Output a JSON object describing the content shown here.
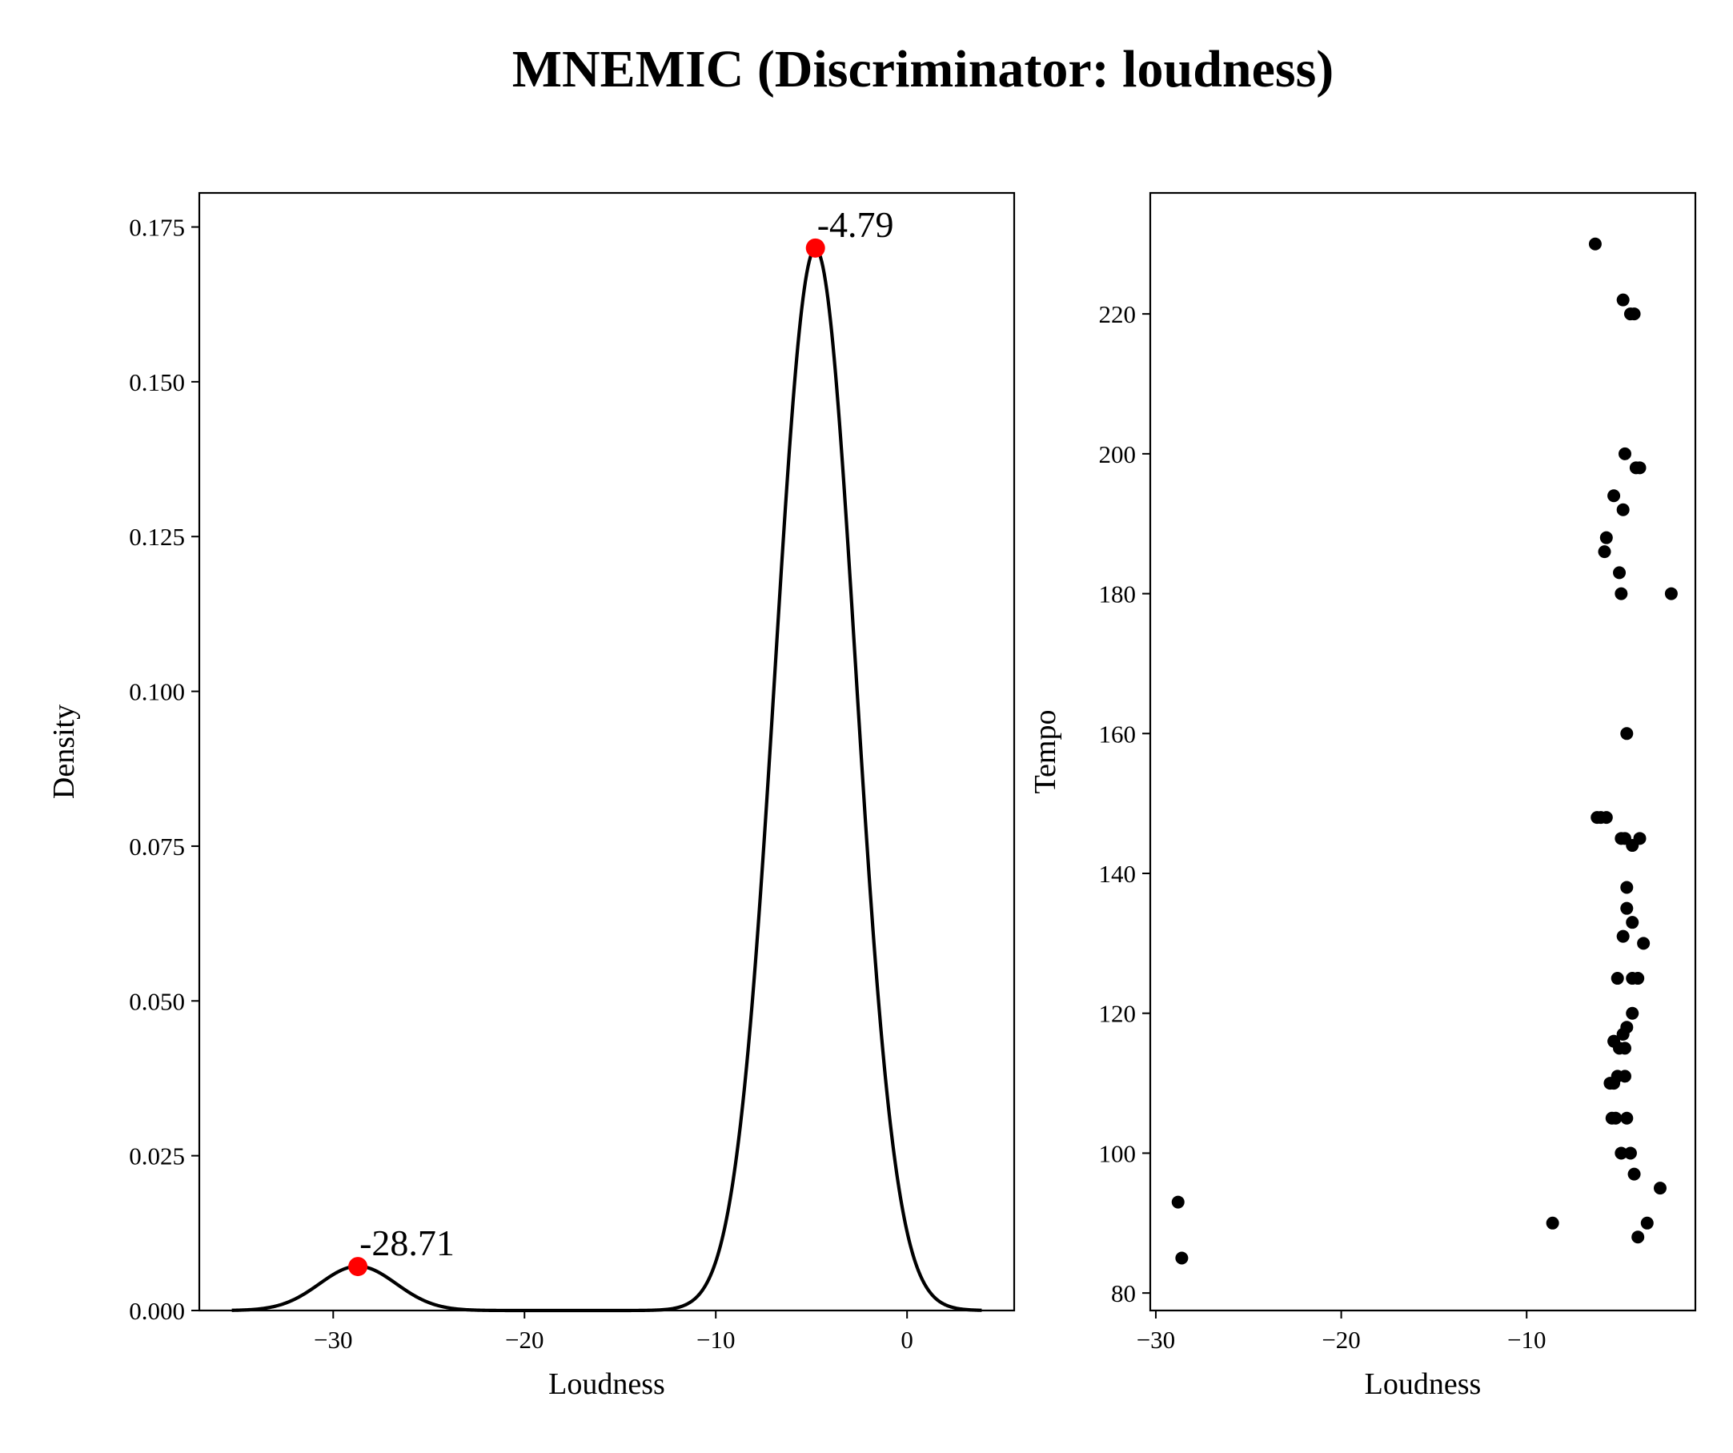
{
  "figure": {
    "title": "MNEMIC (Discriminator: loudness)"
  },
  "chart_data": [
    {
      "type": "line",
      "panel": "left",
      "xlabel": "Loudness",
      "ylabel": "Density",
      "xlim": [
        -37.0,
        5.6
      ],
      "ylim": [
        0,
        0.1805
      ],
      "xticks": [
        -30,
        -20,
        -10,
        0
      ],
      "xtick_labels": [
        "−30",
        "−20",
        "−10",
        "0"
      ],
      "yticks": [
        0.0,
        0.025,
        0.05,
        0.075,
        0.1,
        0.125,
        0.15,
        0.175
      ],
      "ytick_labels": [
        "0.000",
        "0.025",
        "0.050",
        "0.075",
        "0.100",
        "0.125",
        "0.150",
        "0.175"
      ],
      "x_range": [
        -35.3,
        3.9
      ],
      "curve_components": [
        {
          "center": -28.71,
          "height": 0.00715,
          "sigma": 2.0
        },
        {
          "center": -4.79,
          "height": 0.1715,
          "sigma": 2.1
        }
      ],
      "peaks": [
        {
          "x": -28.71,
          "y": 0.0071,
          "label": "-28.71"
        },
        {
          "x": -4.79,
          "y": 0.1716,
          "label": "-4.79"
        }
      ],
      "line_color": "#000000",
      "peak_color": "#ff0000"
    },
    {
      "type": "scatter",
      "panel": "right",
      "xlabel": "Loudness",
      "ylabel": "Tempo",
      "xlim": [
        -30.3,
        -0.9
      ],
      "ylim": [
        77.5,
        237.3
      ],
      "xticks": [
        -30,
        -20,
        -10
      ],
      "xtick_labels": [
        "−30",
        "−20",
        "−10"
      ],
      "yticks": [
        80,
        100,
        120,
        140,
        160,
        180,
        200,
        220
      ],
      "ytick_labels": [
        "80",
        "100",
        "120",
        "140",
        "160",
        "180",
        "200",
        "220"
      ],
      "point_color": "#000000",
      "points": [
        [
          -6.3,
          230
        ],
        [
          -4.8,
          222
        ],
        [
          -4.4,
          220
        ],
        [
          -4.2,
          220
        ],
        [
          -4.7,
          200
        ],
        [
          -4.1,
          198
        ],
        [
          -3.9,
          198
        ],
        [
          -5.3,
          194
        ],
        [
          -4.8,
          192
        ],
        [
          -5.7,
          188
        ],
        [
          -5.8,
          186
        ],
        [
          -5.0,
          183
        ],
        [
          -4.9,
          180
        ],
        [
          -2.2,
          180
        ],
        [
          -4.6,
          160
        ],
        [
          -6.2,
          148
        ],
        [
          -6.0,
          148
        ],
        [
          -5.7,
          148
        ],
        [
          -4.9,
          145
        ],
        [
          -4.7,
          145
        ],
        [
          -4.3,
          144
        ],
        [
          -3.9,
          145
        ],
        [
          -4.6,
          138
        ],
        [
          -4.6,
          135
        ],
        [
          -4.3,
          133
        ],
        [
          -4.8,
          131
        ],
        [
          -3.7,
          130
        ],
        [
          -5.1,
          125
        ],
        [
          -4.3,
          125
        ],
        [
          -4.0,
          125
        ],
        [
          -4.3,
          120
        ],
        [
          -4.6,
          118
        ],
        [
          -4.8,
          117
        ],
        [
          -5.3,
          116
        ],
        [
          -5.0,
          115
        ],
        [
          -4.7,
          115
        ],
        [
          -5.1,
          111
        ],
        [
          -4.7,
          111
        ],
        [
          -5.3,
          110
        ],
        [
          -5.5,
          110
        ],
        [
          -5.4,
          105
        ],
        [
          -5.2,
          105
        ],
        [
          -4.6,
          105
        ],
        [
          -4.9,
          100
        ],
        [
          -4.4,
          100
        ],
        [
          -4.2,
          97
        ],
        [
          -2.8,
          95
        ],
        [
          -3.5,
          90
        ],
        [
          -8.6,
          90
        ],
        [
          -4.0,
          88
        ],
        [
          -28.8,
          93
        ],
        [
          -28.6,
          85
        ]
      ]
    }
  ]
}
